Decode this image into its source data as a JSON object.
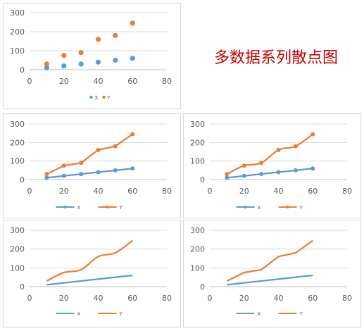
{
  "caption": "多数据系列散点图",
  "colors": {
    "X": "#5b9bd5",
    "Y": "#ed7d31",
    "grid": "#d9d9d9",
    "text": "#595959"
  },
  "chart_data": [
    {
      "type": "scatter",
      "style": "markers-only",
      "x": [
        10,
        20,
        30,
        40,
        50,
        60
      ],
      "series": [
        {
          "name": "X",
          "values": [
            10,
            20,
            30,
            40,
            50,
            60
          ]
        },
        {
          "name": "Y",
          "values": [
            30,
            75,
            90,
            160,
            180,
            245
          ]
        }
      ],
      "xlim": [
        0,
        80
      ],
      "ylim": [
        0,
        300
      ],
      "xticks": [
        0,
        20,
        40,
        60,
        80
      ],
      "yticks": [
        0,
        100,
        200,
        300
      ],
      "legend": "bottom",
      "grid": "horizontal"
    },
    {
      "type": "scatter",
      "style": "straight-lines-with-markers",
      "x": [
        10,
        20,
        30,
        40,
        50,
        60
      ],
      "series": [
        {
          "name": "X",
          "values": [
            10,
            20,
            30,
            40,
            50,
            60
          ]
        },
        {
          "name": "Y",
          "values": [
            30,
            75,
            90,
            160,
            180,
            245
          ]
        }
      ],
      "xlim": [
        0,
        80
      ],
      "ylim": [
        0,
        300
      ],
      "xticks": [
        0,
        20,
        40,
        60,
        80
      ],
      "yticks": [
        0,
        100,
        200,
        300
      ],
      "legend": "bottom",
      "grid": "horizontal"
    },
    {
      "type": "scatter",
      "style": "smooth-lines-with-markers",
      "x": [
        10,
        20,
        30,
        40,
        50,
        60
      ],
      "series": [
        {
          "name": "X",
          "values": [
            10,
            20,
            30,
            40,
            50,
            60
          ]
        },
        {
          "name": "Y",
          "values": [
            30,
            75,
            90,
            160,
            180,
            245
          ]
        }
      ],
      "xlim": [
        0,
        80
      ],
      "ylim": [
        0,
        300
      ],
      "xticks": [
        0,
        20,
        40,
        60,
        80
      ],
      "yticks": [
        0,
        100,
        200,
        300
      ],
      "legend": "bottom",
      "grid": "horizontal"
    },
    {
      "type": "scatter",
      "style": "smooth-lines",
      "x": [
        10,
        20,
        30,
        40,
        50,
        60
      ],
      "series": [
        {
          "name": "X",
          "values": [
            10,
            20,
            30,
            40,
            50,
            60
          ]
        },
        {
          "name": "Y",
          "values": [
            30,
            75,
            90,
            160,
            180,
            245
          ]
        }
      ],
      "xlim": [
        0,
        80
      ],
      "ylim": [
        0,
        300
      ],
      "xticks": [
        0,
        20,
        40,
        60,
        80
      ],
      "yticks": [
        0,
        100,
        200,
        300
      ],
      "legend": "bottom",
      "grid": "horizontal"
    },
    {
      "type": "scatter",
      "style": "straight-lines",
      "x": [
        10,
        20,
        30,
        40,
        50,
        60
      ],
      "series": [
        {
          "name": "X",
          "values": [
            10,
            20,
            30,
            40,
            50,
            60
          ]
        },
        {
          "name": "Y",
          "values": [
            30,
            75,
            90,
            160,
            180,
            245
          ]
        }
      ],
      "xlim": [
        0,
        80
      ],
      "ylim": [
        0,
        300
      ],
      "xticks": [
        0,
        20,
        40,
        60,
        80
      ],
      "yticks": [
        0,
        100,
        200,
        300
      ],
      "legend": "bottom",
      "grid": "horizontal"
    }
  ]
}
